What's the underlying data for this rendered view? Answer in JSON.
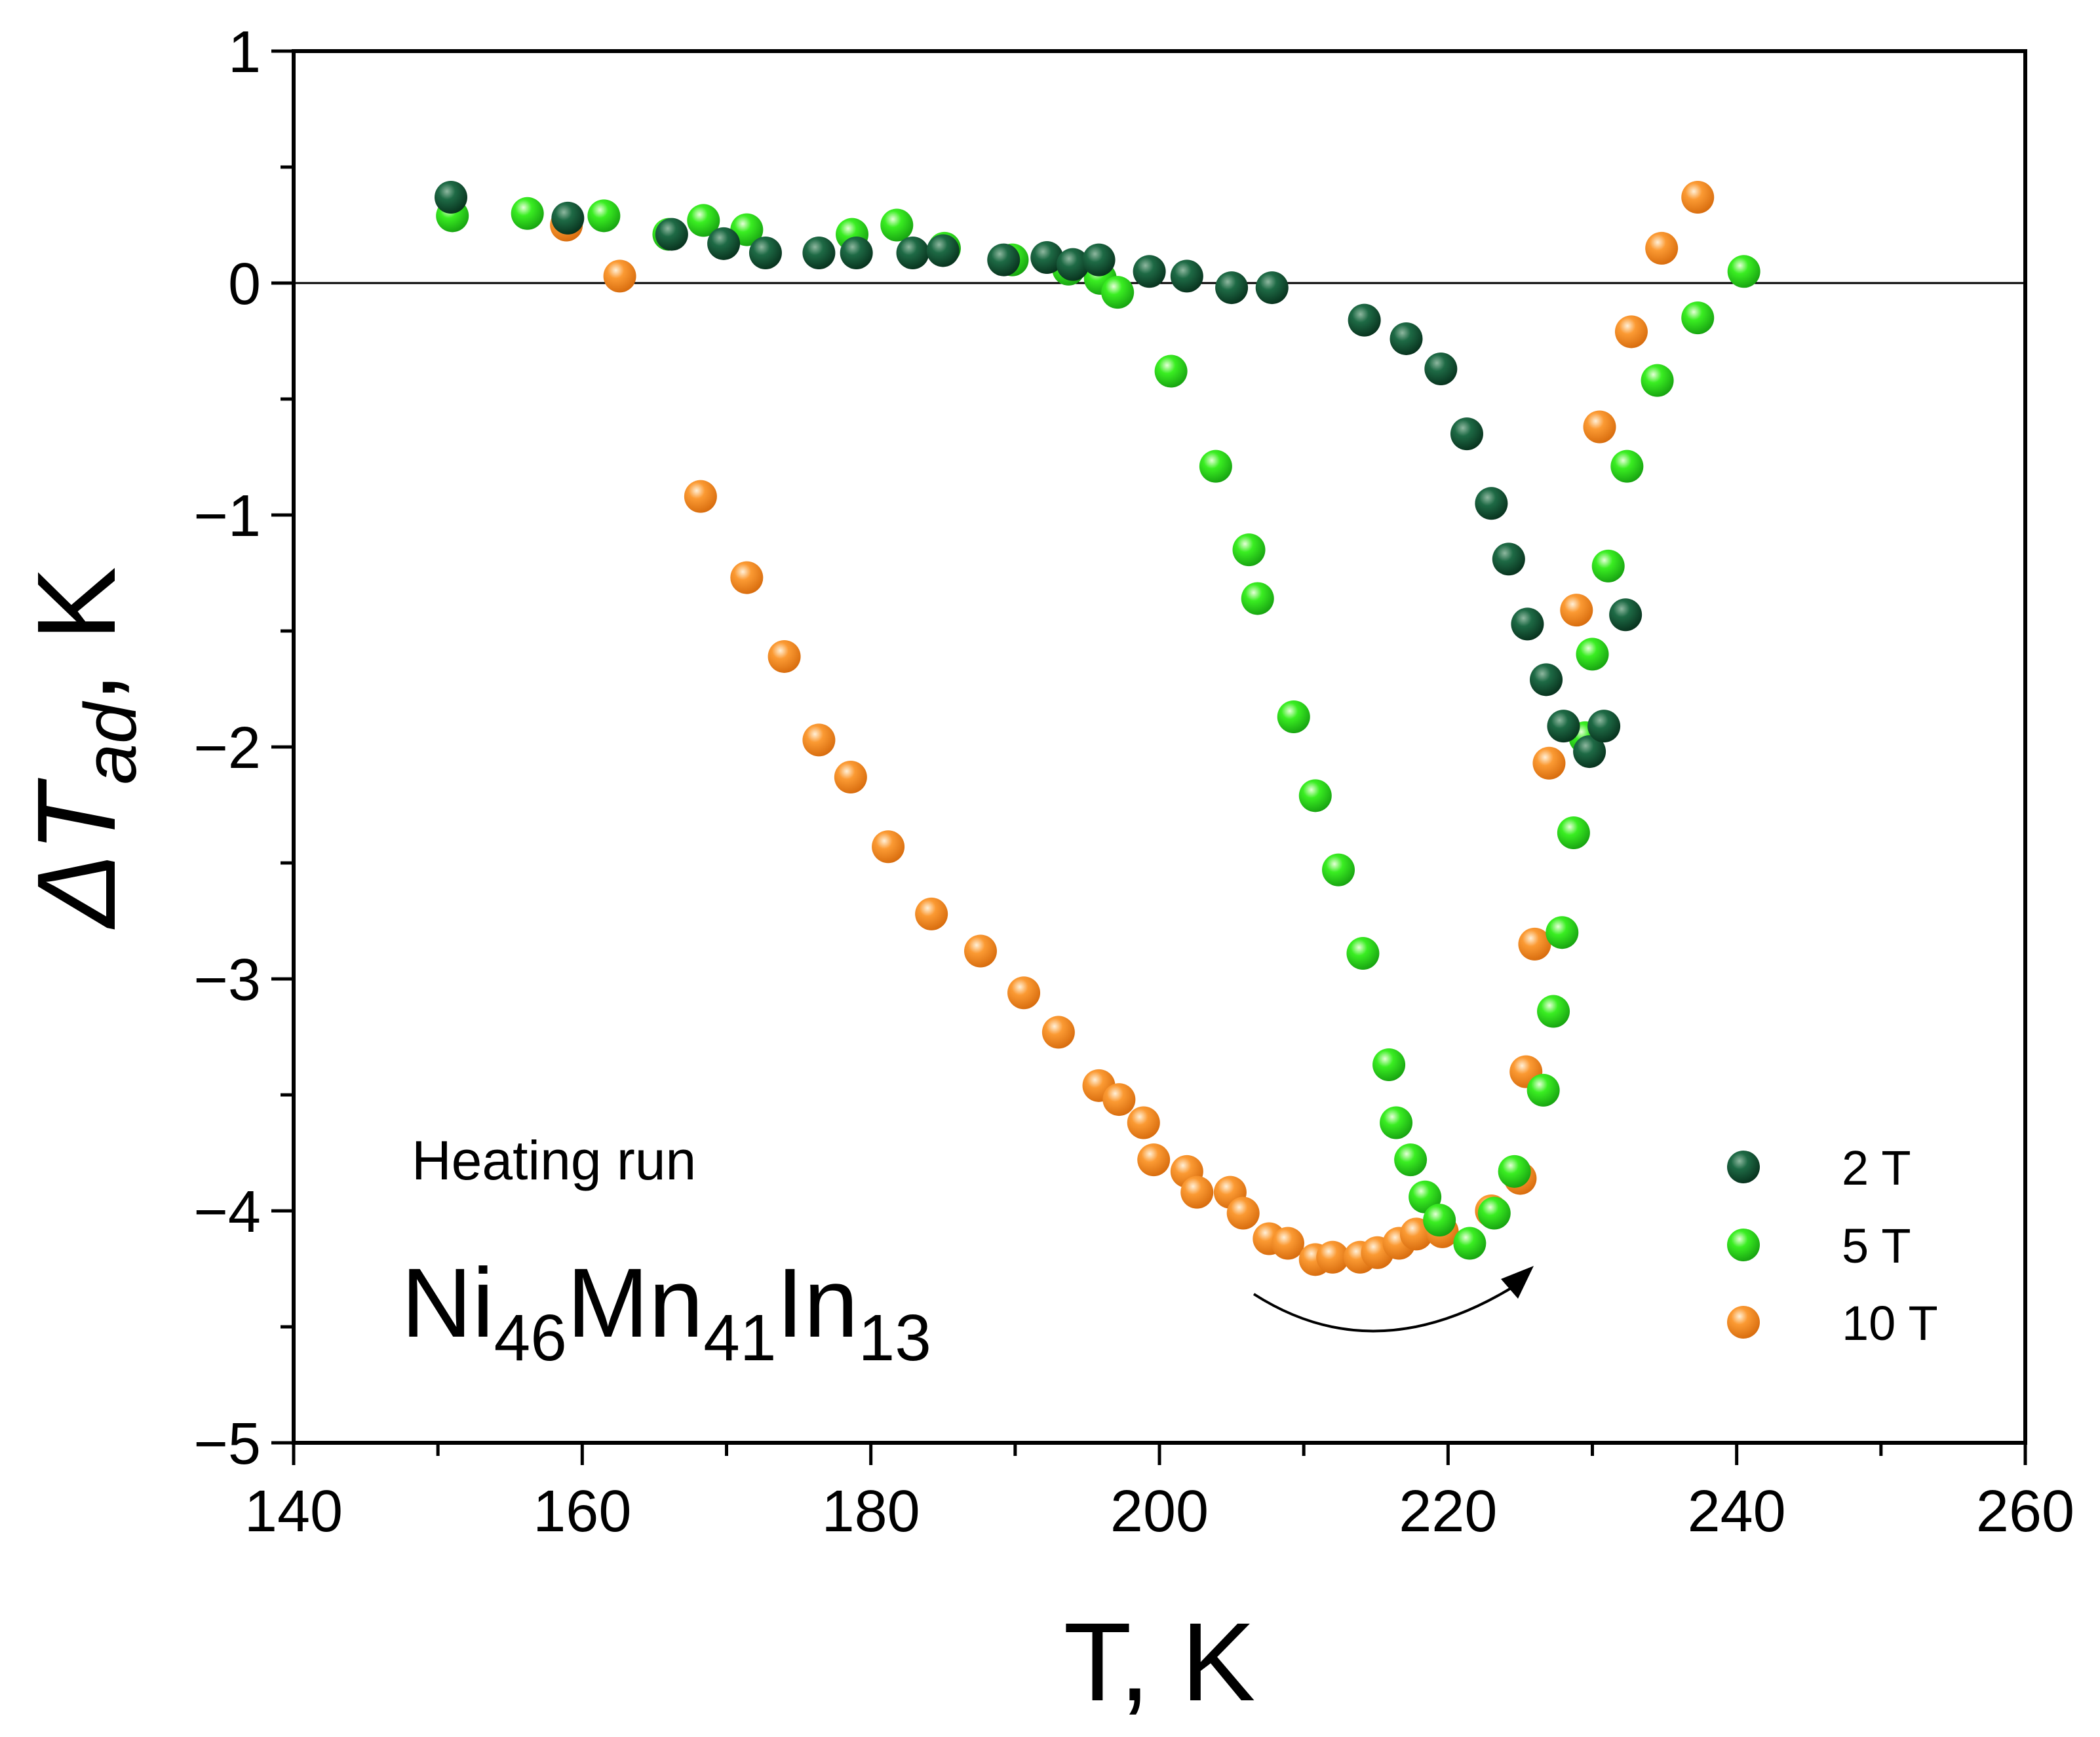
{
  "chart_data": {
    "type": "scatter",
    "xlabel": "T, K",
    "ylabel": {
      "prefix": "ΔT",
      "subscript": "ad",
      "suffix": ", K"
    },
    "xlim": [
      140,
      260
    ],
    "ylim": [
      -5,
      1
    ],
    "x_ticks": [
      140,
      160,
      180,
      200,
      220,
      240,
      260
    ],
    "y_ticks": [
      1,
      0,
      -1,
      -2,
      -3,
      -4,
      -5
    ],
    "x_tick_labels": [
      "140",
      "160",
      "180",
      "200",
      "220",
      "240",
      "260"
    ],
    "y_tick_labels": [
      "1",
      "0",
      "−1",
      "−2",
      "−3",
      "−4",
      "−5"
    ],
    "zero_line": true,
    "grid": false,
    "legend_position": "bottom-right",
    "series": [
      {
        "name": "2 T",
        "color": "#0e4a2e",
        "points": [
          [
            150.9,
            0.37
          ],
          [
            159.0,
            0.28
          ],
          [
            166.2,
            0.21
          ],
          [
            169.8,
            0.17
          ],
          [
            172.7,
            0.13
          ],
          [
            176.4,
            0.13
          ],
          [
            179.0,
            0.13
          ],
          [
            182.9,
            0.13
          ],
          [
            185.0,
            0.14
          ],
          [
            189.2,
            0.1
          ],
          [
            192.2,
            0.11
          ],
          [
            194.0,
            0.08
          ],
          [
            195.8,
            0.1
          ],
          [
            199.3,
            0.05
          ],
          [
            201.9,
            0.03
          ],
          [
            205.0,
            -0.02
          ],
          [
            207.8,
            -0.02
          ],
          [
            214.2,
            -0.16
          ],
          [
            217.1,
            -0.24
          ],
          [
            219.5,
            -0.37
          ],
          [
            221.3,
            -0.65
          ],
          [
            223.0,
            -0.95
          ],
          [
            224.2,
            -1.19
          ],
          [
            225.5,
            -1.47
          ],
          [
            226.8,
            -1.71
          ],
          [
            228.0,
            -1.91
          ],
          [
            229.8,
            -2.02
          ],
          [
            230.8,
            -1.91
          ],
          [
            232.3,
            -1.43
          ]
        ]
      },
      {
        "name": "5 T",
        "color": "#22dd11",
        "points": [
          [
            151.0,
            0.29
          ],
          [
            156.2,
            0.3
          ],
          [
            161.5,
            0.29
          ],
          [
            166.0,
            0.21
          ],
          [
            168.4,
            0.27
          ],
          [
            171.4,
            0.23
          ],
          [
            178.7,
            0.21
          ],
          [
            181.8,
            0.25
          ],
          [
            185.1,
            0.15
          ],
          [
            189.8,
            0.1
          ],
          [
            193.7,
            0.06
          ],
          [
            195.9,
            0.02
          ],
          [
            197.1,
            -0.04
          ],
          [
            200.8,
            -0.38
          ],
          [
            203.9,
            -0.79
          ],
          [
            206.2,
            -1.15
          ],
          [
            206.8,
            -1.36
          ],
          [
            209.3,
            -1.87
          ],
          [
            210.8,
            -2.21
          ],
          [
            212.4,
            -2.53
          ],
          [
            214.1,
            -2.89
          ],
          [
            215.9,
            -3.37
          ],
          [
            216.4,
            -3.62
          ],
          [
            217.4,
            -3.78
          ],
          [
            218.4,
            -3.94
          ],
          [
            219.4,
            -4.04
          ],
          [
            221.5,
            -4.14
          ],
          [
            223.2,
            -4.01
          ],
          [
            224.6,
            -3.83
          ],
          [
            226.6,
            -3.48
          ],
          [
            227.3,
            -3.14
          ],
          [
            227.9,
            -2.8
          ],
          [
            228.7,
            -2.37
          ],
          [
            229.5,
            -1.96
          ],
          [
            230.0,
            -1.6
          ],
          [
            231.1,
            -1.22
          ],
          [
            232.4,
            -0.79
          ],
          [
            234.5,
            -0.42
          ],
          [
            237.3,
            -0.15
          ],
          [
            240.5,
            0.05
          ]
        ]
      },
      {
        "name": "10 T",
        "color": "#f78a21",
        "points": [
          [
            158.9,
            0.25
          ],
          [
            162.6,
            0.03
          ],
          [
            168.2,
            -0.92
          ],
          [
            171.4,
            -1.27
          ],
          [
            174.0,
            -1.61
          ],
          [
            176.4,
            -1.97
          ],
          [
            178.6,
            -2.13
          ],
          [
            181.2,
            -2.43
          ],
          [
            184.2,
            -2.72
          ],
          [
            187.6,
            -2.88
          ],
          [
            190.6,
            -3.06
          ],
          [
            193.0,
            -3.23
          ],
          [
            195.8,
            -3.46
          ],
          [
            197.2,
            -3.52
          ],
          [
            198.9,
            -3.62
          ],
          [
            199.6,
            -3.78
          ],
          [
            201.9,
            -3.83
          ],
          [
            202.6,
            -3.92
          ],
          [
            204.9,
            -3.92
          ],
          [
            205.8,
            -4.01
          ],
          [
            207.6,
            -4.12
          ],
          [
            208.9,
            -4.14
          ],
          [
            210.8,
            -4.21
          ],
          [
            212.0,
            -4.2
          ],
          [
            213.9,
            -4.2
          ],
          [
            215.1,
            -4.18
          ],
          [
            216.6,
            -4.14
          ],
          [
            217.8,
            -4.1
          ],
          [
            219.6,
            -4.09
          ],
          [
            223.0,
            -4.0
          ],
          [
            225.0,
            -3.86
          ],
          [
            225.4,
            -3.4
          ],
          [
            226.0,
            -2.85
          ],
          [
            227.0,
            -2.07
          ],
          [
            228.9,
            -1.41
          ],
          [
            230.5,
            -0.62
          ],
          [
            232.7,
            -0.21
          ],
          [
            234.8,
            0.15
          ],
          [
            237.3,
            0.37
          ]
        ]
      }
    ],
    "annotations": {
      "run_label": "Heating run",
      "compound": [
        {
          "text": "Ni",
          "sub": false
        },
        {
          "text": "46",
          "sub": true
        },
        {
          "text": "Mn",
          "sub": false
        },
        {
          "text": "41",
          "sub": true
        },
        {
          "text": "In",
          "sub": false
        },
        {
          "text": "13",
          "sub": true
        }
      ]
    }
  }
}
